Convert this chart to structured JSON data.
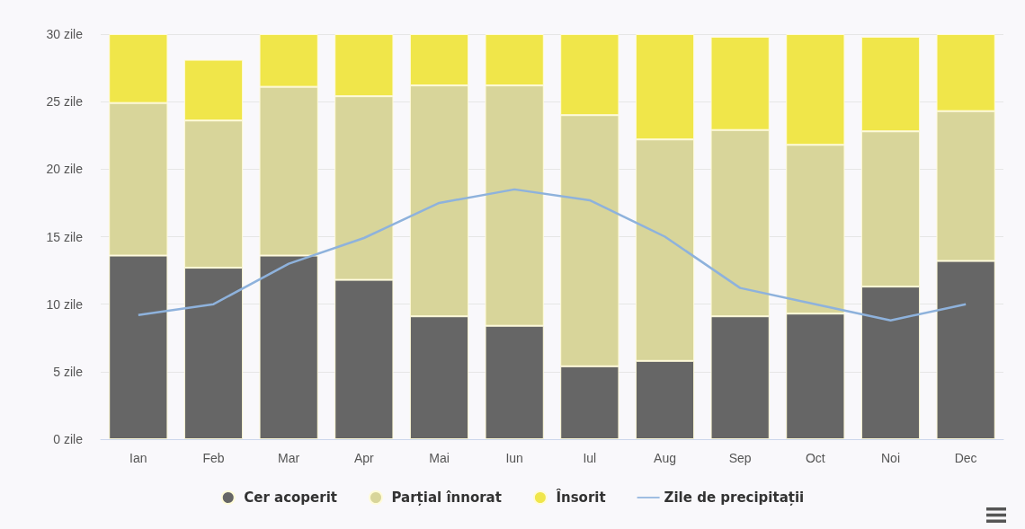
{
  "chart_data": {
    "type": "bar",
    "stacked": true,
    "categories": [
      "Ian",
      "Feb",
      "Mar",
      "Apr",
      "Mai",
      "Iun",
      "Iul",
      "Aug",
      "Sep",
      "Oct",
      "Noi",
      "Dec"
    ],
    "series": [
      {
        "name": "Cer acoperit",
        "color": "#666666",
        "values": [
          13.6,
          12.7,
          13.6,
          11.8,
          9.1,
          8.4,
          5.4,
          5.8,
          9.1,
          9.3,
          11.3,
          13.2
        ]
      },
      {
        "name": "Parțial înnorat",
        "color": "#d8d59a",
        "values": [
          11.3,
          10.9,
          12.5,
          13.6,
          17.1,
          17.8,
          18.6,
          16.4,
          13.8,
          12.5,
          11.5,
          11.1
        ]
      },
      {
        "name": "Însorit",
        "color": "#f0e64a",
        "values": [
          5.1,
          4.5,
          3.9,
          4.6,
          3.8,
          3.8,
          6.0,
          7.8,
          6.9,
          8.2,
          7.0,
          5.7
        ]
      },
      {
        "name": "Zile de precipitații",
        "type": "line",
        "color": "#8eb2dc",
        "values": [
          9.2,
          10.0,
          13.0,
          14.9,
          17.5,
          18.5,
          17.7,
          15.0,
          11.2,
          10.0,
          8.8,
          10.0
        ]
      }
    ],
    "ylim": [
      0,
      30
    ],
    "yticks": [
      {
        "value": 0,
        "label": "0 zile"
      },
      {
        "value": 5,
        "label": "5 zile"
      },
      {
        "value": 10,
        "label": "10 zile"
      },
      {
        "value": 15,
        "label": "15 zile"
      },
      {
        "value": 20,
        "label": "20 zile"
      },
      {
        "value": 25,
        "label": "25 zile"
      },
      {
        "value": 30,
        "label": "30 zile"
      }
    ],
    "grid": "y",
    "legend": "bottom",
    "marker": "none"
  }
}
